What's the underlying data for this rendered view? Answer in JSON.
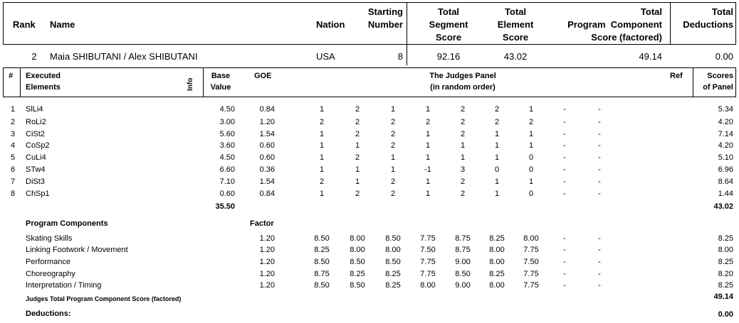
{
  "header": {
    "col_rank": "Rank",
    "col_name": "Name",
    "col_nation": "Nation",
    "col_starting": [
      "Starting",
      "Number"
    ],
    "col_tss": [
      "Total",
      "Segment",
      "Score"
    ],
    "col_tes": [
      "Total",
      "Element",
      "Score"
    ],
    "col_pcs": [
      "Total",
      "Program  Component",
      "Score (factored)"
    ],
    "col_ded": [
      "Total",
      "Deductions"
    ]
  },
  "skater": {
    "rank": "2",
    "name": "Maia SHIBUTANI / Alex SHIBUTANI",
    "nation": "USA",
    "starting_number": "8",
    "tss": "92.16",
    "tes": "43.02",
    "pcs": "49.14",
    "deductions": "0.00"
  },
  "elements_header": {
    "num": "#",
    "executed": [
      "Executed",
      "Elements"
    ],
    "info": "Info",
    "base": [
      "Base",
      "Value"
    ],
    "goe": "GOE",
    "panel": [
      "The Judges Panel",
      "(in random order)"
    ],
    "ref": "Ref",
    "scores": [
      "Scores",
      "of Panel"
    ]
  },
  "elements": [
    {
      "num": "1",
      "name": "SlLi4",
      "base": "4.50",
      "goe": "0.84",
      "judges": [
        "1",
        "2",
        "1",
        "1",
        "2",
        "2",
        "1",
        "-",
        "-"
      ],
      "score": "5.34"
    },
    {
      "num": "2",
      "name": "RoLi2",
      "base": "3.00",
      "goe": "1.20",
      "judges": [
        "2",
        "2",
        "2",
        "2",
        "2",
        "2",
        "2",
        "-",
        "-"
      ],
      "score": "4.20"
    },
    {
      "num": "3",
      "name": "CiSt2",
      "base": "5.60",
      "goe": "1.54",
      "judges": [
        "1",
        "2",
        "2",
        "1",
        "2",
        "1",
        "1",
        "-",
        "-"
      ],
      "score": "7.14"
    },
    {
      "num": "4",
      "name": "CoSp2",
      "base": "3.60",
      "goe": "0.60",
      "judges": [
        "1",
        "1",
        "2",
        "1",
        "1",
        "1",
        "1",
        "-",
        "-"
      ],
      "score": "4.20"
    },
    {
      "num": "5",
      "name": "CuLi4",
      "base": "4.50",
      "goe": "0.60",
      "judges": [
        "1",
        "2",
        "1",
        "1",
        "1",
        "1",
        "0",
        "-",
        "-"
      ],
      "score": "5.10"
    },
    {
      "num": "6",
      "name": "STw4",
      "base": "6.60",
      "goe": "0.36",
      "judges": [
        "1",
        "1",
        "1",
        "-1",
        "3",
        "0",
        "0",
        "-",
        "-"
      ],
      "score": "6.96"
    },
    {
      "num": "7",
      "name": "DiSt3",
      "base": "7.10",
      "goe": "1.54",
      "judges": [
        "2",
        "1",
        "2",
        "1",
        "2",
        "1",
        "1",
        "-",
        "-"
      ],
      "score": "8.64"
    },
    {
      "num": "8",
      "name": "ChSp1",
      "base": "0.60",
      "goe": "0.84",
      "judges": [
        "1",
        "2",
        "2",
        "1",
        "2",
        "1",
        "0",
        "-",
        "-"
      ],
      "score": "1.44"
    }
  ],
  "elements_total": {
    "base": "35.50",
    "score": "43.02"
  },
  "components_header": {
    "title": "Program Components",
    "factor": "Factor"
  },
  "components": [
    {
      "name": "Skating Skills",
      "factor": "1.20",
      "judges": [
        "8.50",
        "8.00",
        "8.50",
        "7.75",
        "8.75",
        "8.25",
        "8.00",
        "-",
        "-"
      ],
      "score": "8.25"
    },
    {
      "name": "Linking Footwork / Movement",
      "factor": "1.20",
      "judges": [
        "8.25",
        "8.00",
        "8.00",
        "7.50",
        "8.75",
        "8.00",
        "7.75",
        "-",
        "-"
      ],
      "score": "8.00"
    },
    {
      "name": "Performance",
      "factor": "1.20",
      "judges": [
        "8.50",
        "8.50",
        "8.50",
        "7.75",
        "9.00",
        "8.00",
        "7.50",
        "-",
        "-"
      ],
      "score": "8.25"
    },
    {
      "name": "Choreography",
      "factor": "1.20",
      "judges": [
        "8.75",
        "8.25",
        "8.25",
        "7.75",
        "8.50",
        "8.25",
        "7.75",
        "-",
        "-"
      ],
      "score": "8.20"
    },
    {
      "name": "Interpretation / Timing",
      "factor": "1.20",
      "judges": [
        "8.50",
        "8.50",
        "8.25",
        "8.00",
        "9.00",
        "8.00",
        "7.75",
        "-",
        "-"
      ],
      "score": "8.25"
    }
  ],
  "pcs_total": {
    "label": "Judges Total Program Component Score (factored)",
    "value": "49.14"
  },
  "deductions_row": {
    "label": "Deductions:",
    "value": "0.00"
  }
}
